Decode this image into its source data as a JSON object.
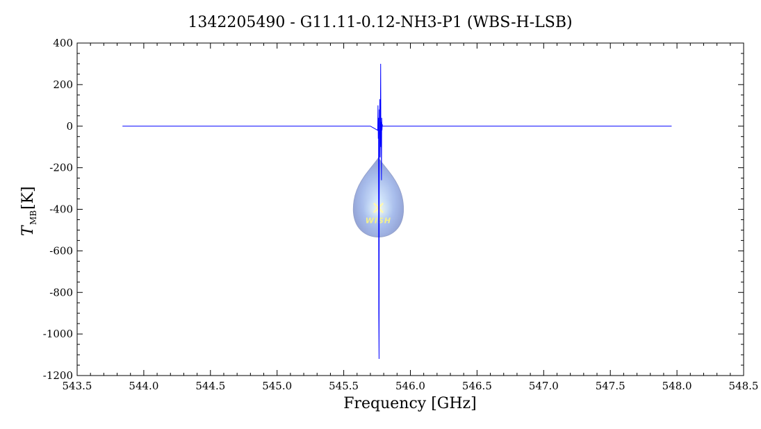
{
  "chart_data": {
    "type": "line",
    "title": "1342205490 - G11.11-0.12-NH3-P1 (WBS-H-LSB)",
    "xlabel": "Frequency [GHz]",
    "ylabel_symbol": "T",
    "ylabel_subscript": "MB",
    "ylabel_unit": "[K]",
    "xlim": [
      543.5,
      548.5
    ],
    "ylim": [
      -1200,
      400
    ],
    "x_ticks": [
      "543.5",
      "544.0",
      "544.5",
      "545.0",
      "545.5",
      "546.0",
      "546.5",
      "547.0",
      "547.5",
      "548.0",
      "548.5"
    ],
    "y_ticks": [
      "400",
      "200",
      "0",
      "-200",
      "-400",
      "-600",
      "-800",
      "-1000",
      "-1200"
    ],
    "x_minor_step": 0.1,
    "y_minor_step": 50,
    "grid": false,
    "series": [
      {
        "color": "#0000ff",
        "x": [
          543.84,
          545.7,
          545.755,
          545.757,
          545.759,
          545.761,
          545.763,
          545.765,
          545.767,
          545.769,
          545.771,
          545.773,
          545.775,
          545.777,
          545.779,
          545.781,
          545.783,
          545.785,
          545.787,
          545.789,
          545.79,
          545.8,
          547.96
        ],
        "y": [
          0,
          0,
          -20,
          100,
          -60,
          40,
          -900,
          -1120,
          80,
          -40,
          130,
          -150,
          60,
          300,
          -100,
          20,
          -260,
          40,
          -20,
          10,
          0,
          0,
          0
        ]
      }
    ],
    "watermark": {
      "text": "WISH",
      "x": 545.76,
      "y": -420
    }
  }
}
